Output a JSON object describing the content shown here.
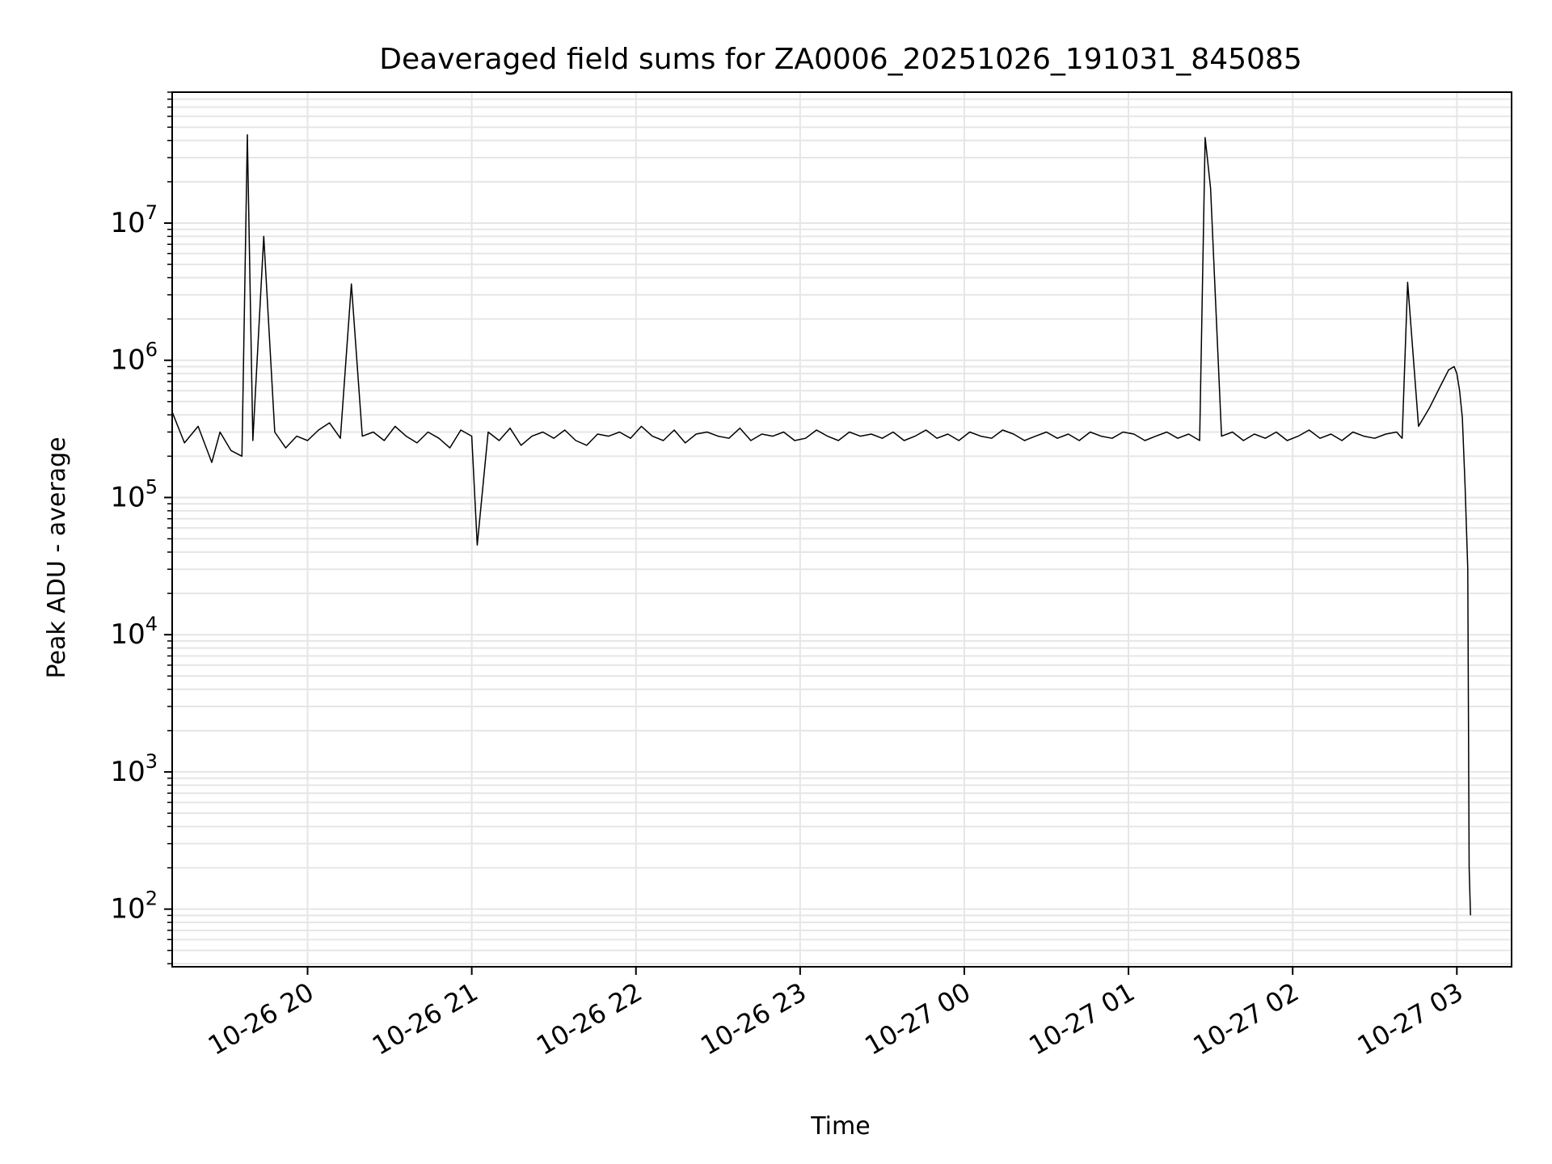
{
  "chart_data": {
    "type": "line",
    "title": "Deaveraged field sums for ZA0006_20251026_191031_845085",
    "xlabel": "Time",
    "ylabel": "Peak ADU - average",
    "y_scale": "log",
    "ylim": [
      38,
      90000000
    ],
    "xlim": [
      "2025-10-26 19:10:31",
      "2025-10-27 03:20:00"
    ],
    "grid": true,
    "grid_minor": true,
    "colors": {
      "line": "#000000",
      "grid": "#e6e6e6",
      "axes": "#000000"
    },
    "x_ticks": [
      {
        "time": "2025-10-26 20:00",
        "label": "10-26 20"
      },
      {
        "time": "2025-10-26 21:00",
        "label": "10-26 21"
      },
      {
        "time": "2025-10-26 22:00",
        "label": "10-26 22"
      },
      {
        "time": "2025-10-26 23:00",
        "label": "10-26 23"
      },
      {
        "time": "2025-10-27 00:00",
        "label": "10-27 00"
      },
      {
        "time": "2025-10-27 01:00",
        "label": "10-27 01"
      },
      {
        "time": "2025-10-27 02:00",
        "label": "10-27 02"
      },
      {
        "time": "2025-10-27 03:00",
        "label": "10-27 03"
      }
    ],
    "y_ticks": [
      {
        "value": 100,
        "base": "10",
        "exp": "2"
      },
      {
        "value": 1000,
        "base": "10",
        "exp": "3"
      },
      {
        "value": 10000,
        "base": "10",
        "exp": "4"
      },
      {
        "value": 100000,
        "base": "10",
        "exp": "5"
      },
      {
        "value": 1000000,
        "base": "10",
        "exp": "6"
      },
      {
        "value": 10000000,
        "base": "10",
        "exp": "7"
      }
    ],
    "series": [
      {
        "x": [
          "2025-10-26 19:10:31",
          "2025-10-26 19:15",
          "2025-10-26 19:20",
          "2025-10-26 19:25",
          "2025-10-26 19:28",
          "2025-10-26 19:32",
          "2025-10-26 19:36",
          "2025-10-26 19:38",
          "2025-10-26 19:40",
          "2025-10-26 19:44",
          "2025-10-26 19:48",
          "2025-10-26 19:52",
          "2025-10-26 19:56",
          "2025-10-26 20:00",
          "2025-10-26 20:04",
          "2025-10-26 20:08",
          "2025-10-26 20:12",
          "2025-10-26 20:16",
          "2025-10-26 20:20",
          "2025-10-26 20:24",
          "2025-10-26 20:28",
          "2025-10-26 20:32",
          "2025-10-26 20:36",
          "2025-10-26 20:40",
          "2025-10-26 20:44",
          "2025-10-26 20:48",
          "2025-10-26 20:52",
          "2025-10-26 20:56",
          "2025-10-26 21:00",
          "2025-10-26 21:02",
          "2025-10-26 21:06",
          "2025-10-26 21:10",
          "2025-10-26 21:14",
          "2025-10-26 21:18",
          "2025-10-26 21:22",
          "2025-10-26 21:26",
          "2025-10-26 21:30",
          "2025-10-26 21:34",
          "2025-10-26 21:38",
          "2025-10-26 21:42",
          "2025-10-26 21:46",
          "2025-10-26 21:50",
          "2025-10-26 21:54",
          "2025-10-26 21:58",
          "2025-10-26 22:02",
          "2025-10-26 22:06",
          "2025-10-26 22:10",
          "2025-10-26 22:14",
          "2025-10-26 22:18",
          "2025-10-26 22:22",
          "2025-10-26 22:26",
          "2025-10-26 22:30",
          "2025-10-26 22:34",
          "2025-10-26 22:38",
          "2025-10-26 22:42",
          "2025-10-26 22:46",
          "2025-10-26 22:50",
          "2025-10-26 22:54",
          "2025-10-26 22:58",
          "2025-10-26 23:02",
          "2025-10-26 23:06",
          "2025-10-26 23:10",
          "2025-10-26 23:14",
          "2025-10-26 23:18",
          "2025-10-26 23:22",
          "2025-10-26 23:26",
          "2025-10-26 23:30",
          "2025-10-26 23:34",
          "2025-10-26 23:38",
          "2025-10-26 23:42",
          "2025-10-26 23:46",
          "2025-10-26 23:50",
          "2025-10-26 23:54",
          "2025-10-26 23:58",
          "2025-10-27 00:02",
          "2025-10-27 00:06",
          "2025-10-27 00:10",
          "2025-10-27 00:14",
          "2025-10-27 00:18",
          "2025-10-27 00:22",
          "2025-10-27 00:26",
          "2025-10-27 00:30",
          "2025-10-27 00:34",
          "2025-10-27 00:38",
          "2025-10-27 00:42",
          "2025-10-27 00:46",
          "2025-10-27 00:50",
          "2025-10-27 00:54",
          "2025-10-27 00:58",
          "2025-10-27 01:02",
          "2025-10-27 01:06",
          "2025-10-27 01:10",
          "2025-10-27 01:14",
          "2025-10-27 01:18",
          "2025-10-27 01:22",
          "2025-10-27 01:26",
          "2025-10-27 01:28",
          "2025-10-27 01:30",
          "2025-10-27 01:34",
          "2025-10-27 01:38",
          "2025-10-27 01:42",
          "2025-10-27 01:46",
          "2025-10-27 01:50",
          "2025-10-27 01:54",
          "2025-10-27 01:58",
          "2025-10-27 02:02",
          "2025-10-27 02:06",
          "2025-10-27 02:10",
          "2025-10-27 02:14",
          "2025-10-27 02:18",
          "2025-10-27 02:22",
          "2025-10-27 02:26",
          "2025-10-27 02:30",
          "2025-10-27 02:34",
          "2025-10-27 02:38",
          "2025-10-27 02:40",
          "2025-10-27 02:42",
          "2025-10-27 02:46",
          "2025-10-27 02:50",
          "2025-10-27 02:54",
          "2025-10-27 02:57",
          "2025-10-27 02:59",
          "2025-10-27 03:00",
          "2025-10-27 03:01",
          "2025-10-27 03:02",
          "2025-10-27 03:03",
          "2025-10-27 03:04",
          "2025-10-27 03:04:30",
          "2025-10-27 03:05"
        ],
        "values": [
          420000,
          250000,
          330000,
          180000,
          300000,
          220000,
          200000,
          44000000,
          260000,
          8000000,
          300000,
          230000,
          280000,
          260000,
          310000,
          350000,
          270000,
          3600000,
          280000,
          300000,
          260000,
          330000,
          280000,
          250000,
          300000,
          270000,
          230000,
          310000,
          280000,
          45000,
          300000,
          260000,
          320000,
          240000,
          280000,
          300000,
          270000,
          310000,
          260000,
          240000,
          290000,
          280000,
          300000,
          270000,
          330000,
          280000,
          260000,
          310000,
          250000,
          290000,
          300000,
          280000,
          270000,
          320000,
          260000,
          290000,
          280000,
          300000,
          260000,
          270000,
          310000,
          280000,
          260000,
          300000,
          280000,
          290000,
          270000,
          300000,
          260000,
          280000,
          310000,
          270000,
          290000,
          260000,
          300000,
          280000,
          270000,
          310000,
          290000,
          260000,
          280000,
          300000,
          270000,
          290000,
          260000,
          300000,
          280000,
          270000,
          300000,
          290000,
          260000,
          280000,
          300000,
          270000,
          290000,
          260000,
          42000000,
          18000000,
          280000,
          300000,
          260000,
          290000,
          270000,
          300000,
          260000,
          280000,
          310000,
          270000,
          290000,
          260000,
          300000,
          280000,
          270000,
          290000,
          300000,
          270000,
          3700000,
          330000,
          450000,
          650000,
          850000,
          900000,
          800000,
          600000,
          380000,
          120000,
          30000,
          200,
          90
        ]
      }
    ]
  }
}
